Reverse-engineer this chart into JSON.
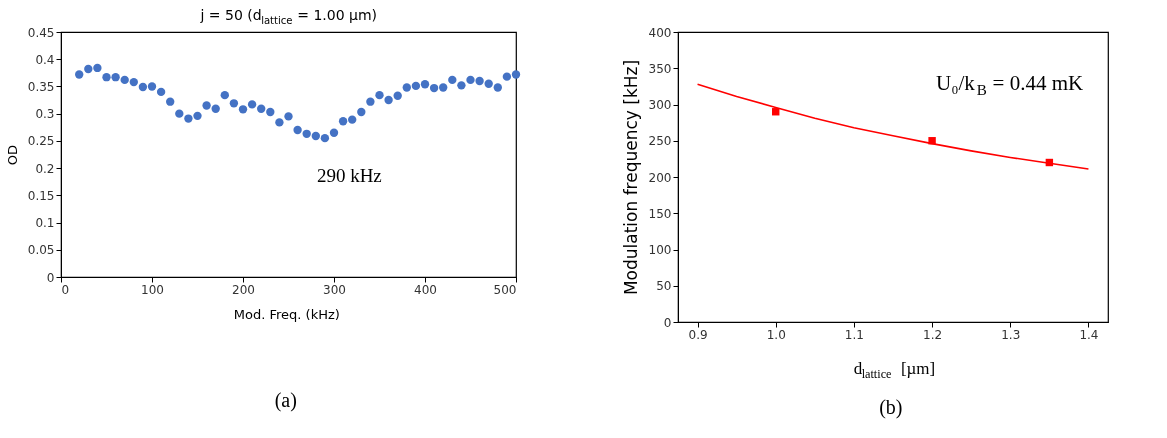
{
  "chart_data": [
    {
      "type": "scatter",
      "title": "j = 50 (d$_{lattice}$ = 1.00 µm)",
      "xlabel": "Mod. Freq. (kHz)",
      "ylabel": "OD",
      "x": [
        20,
        30,
        40,
        50,
        60,
        70,
        80,
        90,
        100,
        110,
        120,
        130,
        140,
        150,
        160,
        170,
        180,
        190,
        200,
        210,
        220,
        230,
        240,
        250,
        260,
        270,
        280,
        290,
        300,
        310,
        320,
        330,
        340,
        350,
        360,
        370,
        380,
        390,
        400,
        410,
        420,
        430,
        440,
        450,
        460,
        470,
        480,
        490,
        500
      ],
      "series": [
        {
          "color": "#4472c4",
          "values": [
            0.372,
            0.382,
            0.384,
            0.367,
            0.367,
            0.362,
            0.358,
            0.349,
            0.35,
            0.34,
            0.322,
            0.3,
            0.291,
            0.296,
            0.315,
            0.309,
            0.334,
            0.319,
            0.308,
            0.317,
            0.309,
            0.303,
            0.284,
            0.295,
            0.27,
            0.263,
            0.259,
            0.255,
            0.265,
            0.286,
            0.289,
            0.303,
            0.322,
            0.334,
            0.325,
            0.333,
            0.348,
            0.351,
            0.354,
            0.347,
            0.348,
            0.362,
            0.352,
            0.362,
            0.36,
            0.355,
            0.348,
            0.368,
            0.372
          ]
        }
      ],
      "xlim": [
        0,
        500
      ],
      "xticks": [
        0,
        100,
        200,
        300,
        400,
        500
      ],
      "ylim": [
        0,
        0.45
      ],
      "yticks": [
        0,
        0.05,
        0.1,
        0.15,
        0.2,
        0.25,
        0.3,
        0.35,
        0.4,
        0.45
      ],
      "marker": "circle",
      "grid": false,
      "legend": false,
      "annotations": [
        {
          "text": "290 kHz",
          "x": 290,
          "y": 0.255
        },
        "(a)"
      ]
    },
    {
      "type": "scatter",
      "xlabel": "d$_{lattice}$ [µm]",
      "ylabel": "Modulation frequency [kHz]",
      "x": [
        1.0,
        1.2,
        1.35
      ],
      "series": [
        {
          "color": "#ff0000",
          "values": [
            290,
            250,
            220
          ],
          "marker": "square"
        },
        {
          "type": "line",
          "color": "#ff0000",
          "marker": "none",
          "x": [
            0.9,
            0.95,
            1.0,
            1.05,
            1.1,
            1.15,
            1.2,
            1.25,
            1.3,
            1.35,
            1.4
          ],
          "values": [
            328,
            311,
            296,
            281,
            268,
            257,
            246,
            236,
            227,
            219,
            211
          ]
        }
      ],
      "xlim": [
        0.875,
        1.425
      ],
      "xticks": [
        {
          "value": 0.9,
          "label": "0.9"
        },
        {
          "value": 1.0,
          "label": "1.0"
        },
        {
          "value": 1.1,
          "label": "1.1"
        },
        {
          "value": 1.2,
          "label": "1.2"
        },
        {
          "value": 1.3,
          "label": "1.3"
        },
        {
          "value": 1.4,
          "label": "1.4"
        }
      ],
      "ylim": [
        0,
        400
      ],
      "yticks": [
        0,
        50,
        100,
        150,
        200,
        250,
        300,
        350,
        400
      ],
      "grid": false,
      "legend": false,
      "annotations": [
        "U₀/k$_{B}$ = 0.44 mK",
        "(b)"
      ]
    }
  ]
}
